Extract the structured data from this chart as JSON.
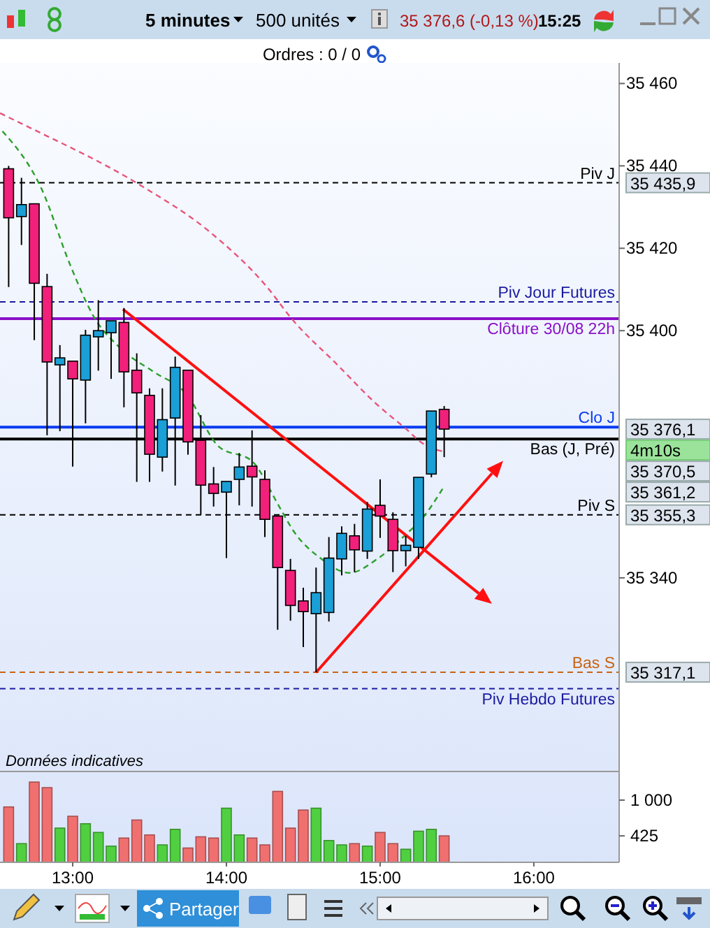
{
  "chart_data": [
    {
      "type": "candlestick",
      "tick_labels": "y",
      "x": [
        12.5833,
        12.6667,
        12.75,
        12.8333,
        12.9167,
        13,
        13.0833,
        13.1667,
        13.25,
        13.3333,
        13.4167,
        13.5,
        13.5833,
        13.6667,
        13.75,
        13.8333,
        13.9167,
        14,
        14.0833,
        14.1667,
        14.25,
        14.3333,
        14.4167,
        14.5,
        14.5833,
        14.6667,
        14.75,
        14.8333,
        14.9167,
        15,
        15.0833,
        15.1667,
        15.25,
        15.3333,
        15.4167
      ],
      "ohlc": [
        [
          35439.3,
          35440,
          35410.6,
          35427.4
        ],
        [
          35427.7,
          35437.1,
          35420.8,
          35430.6
        ],
        [
          35430.8,
          35430.8,
          35397.7,
          35411.5
        ],
        [
          35410.7,
          35413.8,
          35374.6,
          35392.4
        ],
        [
          35391.7,
          35396.5,
          35375.6,
          35393.4
        ],
        [
          35392.6,
          35392.6,
          35367,
          35388.3
        ],
        [
          35388,
          35400.2,
          35377.5,
          35398.9
        ],
        [
          35398.5,
          35407.4,
          35390.3,
          35400
        ],
        [
          35399.5,
          35402.4,
          35388.3,
          35402.4
        ],
        [
          35402,
          35405.5,
          35381.4,
          35390
        ],
        [
          35390.4,
          35394.5,
          35363.3,
          35384.9
        ],
        [
          35384.3,
          35386,
          35363.3,
          35370
        ],
        [
          35369.3,
          35386,
          35365.8,
          35378.4
        ],
        [
          35378.8,
          35393.7,
          35362.4,
          35391.1
        ],
        [
          35390.4,
          35390.4,
          35369.9,
          35373
        ],
        [
          35373.4,
          35379.5,
          35355.3,
          35362.5
        ],
        [
          35362.8,
          35366.9,
          35357.3,
          35360.5
        ],
        [
          35360.8,
          35363.4,
          35344.8,
          35363.4
        ],
        [
          35363.9,
          35370.3,
          35357.6,
          35366.9
        ],
        [
          35367.1,
          35375.8,
          35357.3,
          35364.5
        ],
        [
          35363.9,
          35366.1,
          35349.9,
          35354.2
        ],
        [
          35355,
          35355,
          35327.4,
          35342.5
        ],
        [
          35341.8,
          35344.6,
          35329.6,
          35333.3
        ],
        [
          35334.4,
          35337.6,
          35323.2,
          35331.8
        ],
        [
          35331.3,
          35342.5,
          35317.1,
          35336.4
        ],
        [
          35331.6,
          35349.9,
          35329.4,
          35344.8
        ],
        [
          35344.6,
          35352.5,
          35340.6,
          35350.8
        ],
        [
          35350.2,
          35353.1,
          35341.4,
          35346.8
        ],
        [
          35346.5,
          35358.4,
          35344.6,
          35356.7
        ],
        [
          35357.6,
          35363.9,
          35349.7,
          35355
        ],
        [
          35354.2,
          35355.9,
          35341.4,
          35346.6
        ],
        [
          35346.6,
          35350.2,
          35342.8,
          35347.9
        ],
        [
          35347.4,
          35364.4,
          35344.6,
          35364.4
        ],
        [
          35365.2,
          35380.5,
          35364.4,
          35380.5
        ],
        [
          35380.9,
          35381.7,
          35369.3,
          35376.1
        ]
      ],
      "colors": [
        "#f2207a",
        "#1a9fd6",
        "#f2207a",
        "#f2207a",
        "#1a9fd6",
        "#f2207a",
        "#1a9fd6",
        "#1a9fd6",
        "#1a9fd6",
        "#f2207a",
        "#f2207a",
        "#f2207a",
        "#1a9fd6",
        "#1a9fd6",
        "#f2207a",
        "#f2207a",
        "#f2207a",
        "#1a9fd6",
        "#1a9fd6",
        "#f2207a",
        "#f2207a",
        "#f2207a",
        "#f2207a",
        "#f2207a",
        "#1a9fd6",
        "#1a9fd6",
        "#1a9fd6",
        "#f2207a",
        "#1a9fd6",
        "#f2207a",
        "#f2207a",
        "#1a9fd6",
        "#1a9fd6",
        "#1a9fd6",
        "#f2207a"
      ],
      "series": [
        {
          "type": "line",
          "color": "#e8557a",
          "line_style": "dashed",
          "x": [
            12.527,
            12.709,
            13.436,
            13.891,
            14.255,
            14.436,
            14.709,
            14.982,
            15.164,
            15.282,
            15.406
          ],
          "values": [
            35452.8,
            35449.5,
            35435.4,
            35424,
            35411,
            35402.4,
            35392.2,
            35382,
            35376.3,
            35372.5,
            35370.7
          ]
        },
        {
          "type": "line",
          "color": "#2ca02c",
          "line_style": "dashed",
          "x": [
            12.543,
            12.8,
            12.982,
            13.134,
            13.315,
            13.527,
            13.736,
            13.952,
            14.164,
            14.345,
            14.436,
            14.618,
            14.8,
            14.982,
            15.164,
            15.282,
            15.406
          ],
          "values": [
            35448.4,
            35434.2,
            35416.1,
            35403.6,
            35395.6,
            35390,
            35384.8,
            35371.8,
            35368.4,
            35357.2,
            35351.4,
            35344.6,
            35341.2,
            35344.6,
            35350.4,
            35354.8,
            35361.6
          ]
        }
      ],
      "ref_lines": [
        {
          "axis": "y",
          "value": 35435.9,
          "label": "Piv J",
          "color": "#000000",
          "line_style": "dashed"
        },
        {
          "axis": "y",
          "value": 35407,
          "label": "Piv Jour Futures",
          "color": "#1a1aa0",
          "line_style": "dashed"
        },
        {
          "axis": "y",
          "value": 35402.9,
          "label": "Clôture 30/08 22h",
          "color": "#8a10c8",
          "line_style": "solid"
        },
        {
          "axis": "y",
          "value": 35376.6,
          "label": "Clo J",
          "color": "#0a3cf0",
          "line_style": "solid"
        },
        {
          "axis": "y",
          "value": 35373.7,
          "label": "Bas (J, Pré)",
          "color": "#000000",
          "line_style": "solid"
        },
        {
          "axis": "y",
          "value": 35355.3,
          "label": "Piv S",
          "color": "#000000",
          "line_style": "dashed"
        },
        {
          "axis": "y",
          "value": 35317.1,
          "label": "Bas S",
          "color": "#c86414",
          "line_style": "dashed"
        },
        {
          "axis": "y",
          "value": 35313.1,
          "label": "Piv Hebdo Futures",
          "color": "#1a1aa0",
          "line_style": "dashed"
        }
      ],
      "annotations": [
        "5 minutes",
        "500 unités",
        "35 376,6 (-0,13 %)",
        "15:25",
        "Ordres : 0 / 0",
        "Partager",
        "Données indicatives",
        "4m10s",
        "35 435,9",
        "35 376,1",
        "35 370,5",
        "35 361,2",
        "35 355,3",
        "35 317,1"
      ],
      "xlim": [
        12.527,
        16.555
      ],
      "ylim": [
        35293,
        35465
      ],
      "yticks": [
        {
          "value": 35340,
          "label": "35 340"
        },
        {
          "value": 35400,
          "label": "35 400"
        },
        {
          "value": 35420,
          "label": "35 420"
        },
        {
          "value": 35440,
          "label": "35 440"
        },
        {
          "value": 35460,
          "label": "35 460"
        }
      ]
    },
    {
      "type": "bar",
      "x": [
        12.5833,
        12.6667,
        12.75,
        12.8333,
        12.9167,
        13,
        13.0833,
        13.1667,
        13.25,
        13.3333,
        13.4167,
        13.5,
        13.5833,
        13.6667,
        13.75,
        13.8333,
        13.9167,
        14,
        14.0833,
        14.1667,
        14.25,
        14.3333,
        14.4167,
        14.5,
        14.5833,
        14.6667,
        14.75,
        14.8333,
        14.9167,
        15,
        15.0833,
        15.1667,
        15.25,
        15.3333,
        15.4167
      ],
      "values": [
        890,
        300,
        1290,
        1200,
        550,
        740,
        620,
        480,
        260,
        390,
        680,
        440,
        280,
        530,
        230,
        410,
        390,
        870,
        440,
        390,
        280,
        1140,
        550,
        840,
        870,
        350,
        280,
        300,
        260,
        480,
        300,
        210,
        500,
        530,
        425
      ],
      "colors": [
        "#f07070",
        "#50d040",
        "#f07070",
        "#f07070",
        "#50d040",
        "#f07070",
        "#50d040",
        "#50d040",
        "#50d040",
        "#f07070",
        "#f07070",
        "#f07070",
        "#50d040",
        "#50d040",
        "#f07070",
        "#f07070",
        "#f07070",
        "#50d040",
        "#50d040",
        "#f07070",
        "#f07070",
        "#f07070",
        "#f07070",
        "#f07070",
        "#50d040",
        "#50d040",
        "#50d040",
        "#f07070",
        "#50d040",
        "#f07070",
        "#f07070",
        "#50d040",
        "#50d040",
        "#50d040",
        "#f07070"
      ],
      "xlim": [
        12.527,
        16.555
      ],
      "xticks": [
        {
          "value": 13,
          "label": "13:00"
        },
        {
          "value": 14,
          "label": "14:00"
        },
        {
          "value": 15,
          "label": "15:00"
        },
        {
          "value": 16,
          "label": "16:00"
        }
      ],
      "ylim": [
        0,
        1460
      ],
      "yticks": [
        {
          "value": 425,
          "label": "425"
        },
        {
          "value": 1000,
          "label": "1 000"
        }
      ]
    }
  ]
}
